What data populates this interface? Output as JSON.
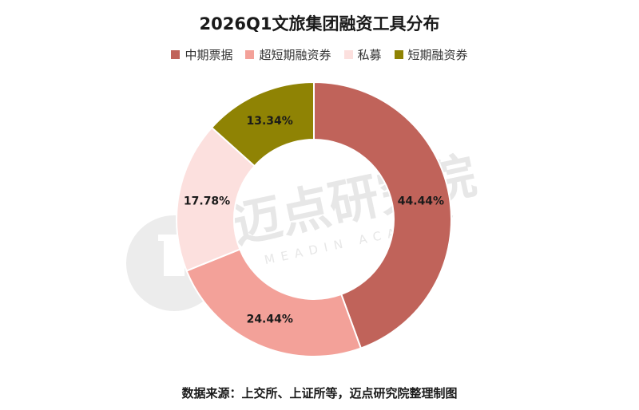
{
  "chart_data": {
    "type": "pie",
    "title": "2026Q1文旅集团融资工具分布",
    "categories": [
      "中期票据",
      "超短期融资券",
      "私募",
      "短期融资券"
    ],
    "values": [
      44.44,
      24.44,
      17.78,
      13.34
    ],
    "labels": [
      "44.44%",
      "24.44%",
      "17.78%",
      "13.34%"
    ],
    "colors": [
      "#c0635a",
      "#f3a199",
      "#fce0de",
      "#8f8304"
    ],
    "donut": true,
    "legend_position": "top"
  },
  "source": "数据来源：上交所、上证所等，迈点研究院整理制图",
  "watermark": {
    "main": "迈点研究院",
    "sub": "MEADIN ACADEMY"
  }
}
